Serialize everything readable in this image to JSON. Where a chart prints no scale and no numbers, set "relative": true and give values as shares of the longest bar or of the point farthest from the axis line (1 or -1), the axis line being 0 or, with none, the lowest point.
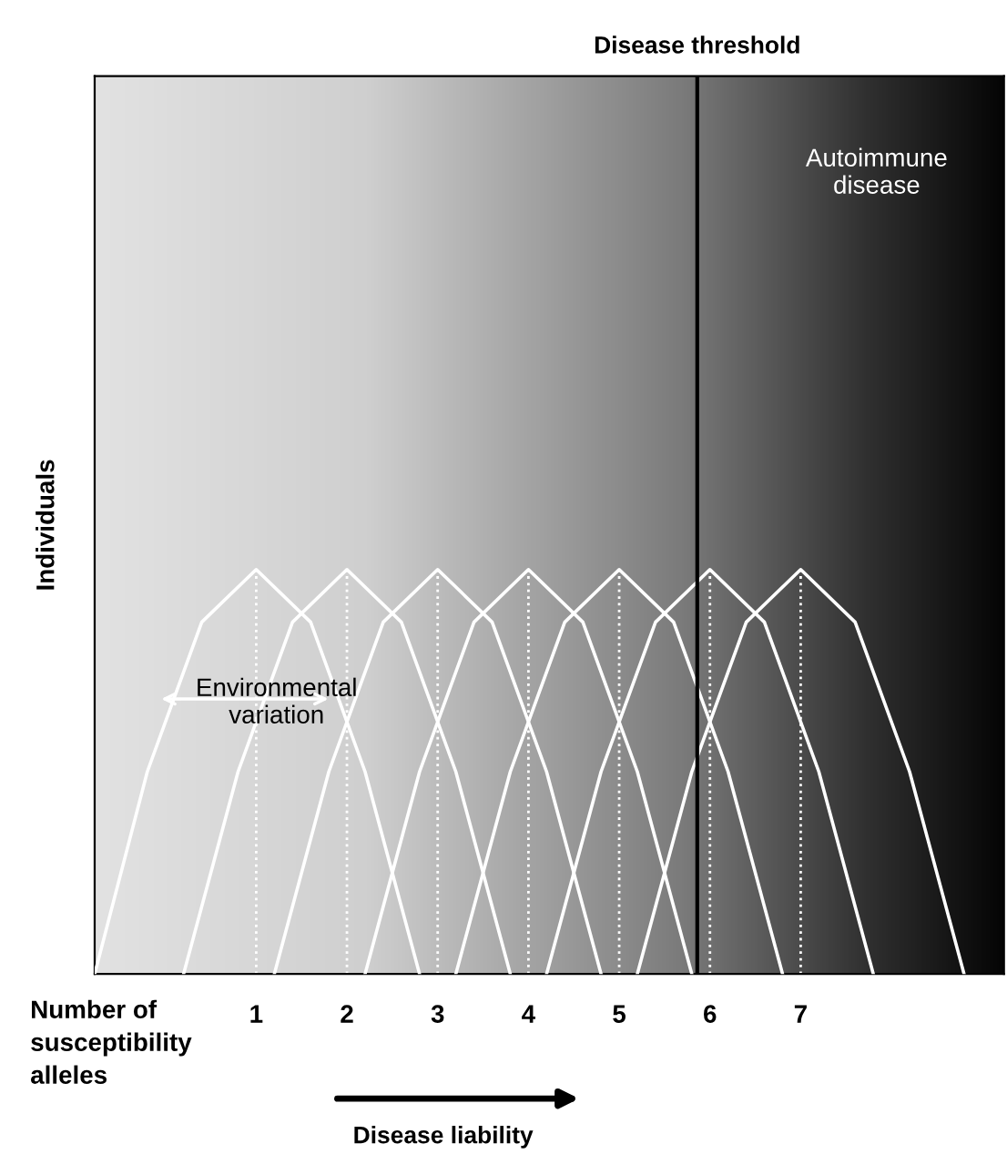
{
  "chart_data": {
    "type": "line",
    "relative": true,
    "ylabel": "Individuals",
    "xticks": [
      1,
      2,
      3,
      4,
      5,
      6,
      7
    ],
    "xlim": [
      -0.78,
      9.24
    ],
    "series": [
      {
        "color": "#ffffff",
        "x": [
          -0.78,
          -0.2,
          0.4,
          1,
          1.6,
          2.2,
          2.8
        ],
        "values": [
          0,
          0.5,
          0.87,
          1,
          0.87,
          0.5,
          0
        ]
      },
      {
        "color": "#ffffff",
        "x": [
          0.2,
          0.8,
          1.4,
          2,
          2.6,
          3.2,
          3.8
        ],
        "values": [
          0,
          0.5,
          0.87,
          1,
          0.87,
          0.5,
          0
        ]
      },
      {
        "color": "#ffffff",
        "x": [
          1.2,
          1.8,
          2.4,
          3,
          3.6,
          4.2,
          4.8
        ],
        "values": [
          0,
          0.5,
          0.87,
          1,
          0.87,
          0.5,
          0
        ]
      },
      {
        "color": "#ffffff",
        "x": [
          2.2,
          2.8,
          3.4,
          4,
          4.6,
          5.2,
          5.8
        ],
        "values": [
          0,
          0.5,
          0.87,
          1,
          0.87,
          0.5,
          0
        ]
      },
      {
        "color": "#ffffff",
        "x": [
          3.2,
          3.8,
          4.4,
          5,
          5.6,
          6.2,
          6.8
        ],
        "values": [
          0,
          0.5,
          0.87,
          1,
          0.87,
          0.5,
          0
        ]
      },
      {
        "color": "#ffffff",
        "x": [
          4.2,
          4.8,
          5.4,
          6,
          6.6,
          7.2,
          7.8
        ],
        "values": [
          0,
          0.5,
          0.87,
          1,
          0.87,
          0.5,
          0
        ]
      },
      {
        "color": "#ffffff",
        "x": [
          5.2,
          5.8,
          6.4,
          7,
          7.6,
          8.2,
          8.8
        ],
        "values": [
          0,
          0.5,
          0.87,
          1,
          0.87,
          0.5,
          0
        ]
      }
    ],
    "ref_lines": [
      {
        "axis": "x",
        "value": 5.86,
        "label": "Disease threshold",
        "color": "#000000",
        "line_style": "solid"
      },
      {
        "axis": "x",
        "value": 1,
        "color": "#ffffff",
        "line_style": "dotted"
      },
      {
        "axis": "x",
        "value": 2,
        "color": "#ffffff",
        "line_style": "dotted"
      },
      {
        "axis": "x",
        "value": 3,
        "color": "#ffffff",
        "line_style": "dotted"
      },
      {
        "axis": "x",
        "value": 4,
        "color": "#ffffff",
        "line_style": "dotted"
      },
      {
        "axis": "x",
        "value": 5,
        "color": "#ffffff",
        "line_style": "dotted"
      },
      {
        "axis": "x",
        "value": 6,
        "color": "#ffffff",
        "line_style": "dotted"
      },
      {
        "axis": "x",
        "value": 7,
        "color": "#ffffff",
        "line_style": "dotted"
      }
    ],
    "annotations": [
      "Autoimmune\ndisease",
      "Environmental\nvariation",
      "Number of\nsusceptibility\nalleles",
      "Disease liability"
    ]
  }
}
